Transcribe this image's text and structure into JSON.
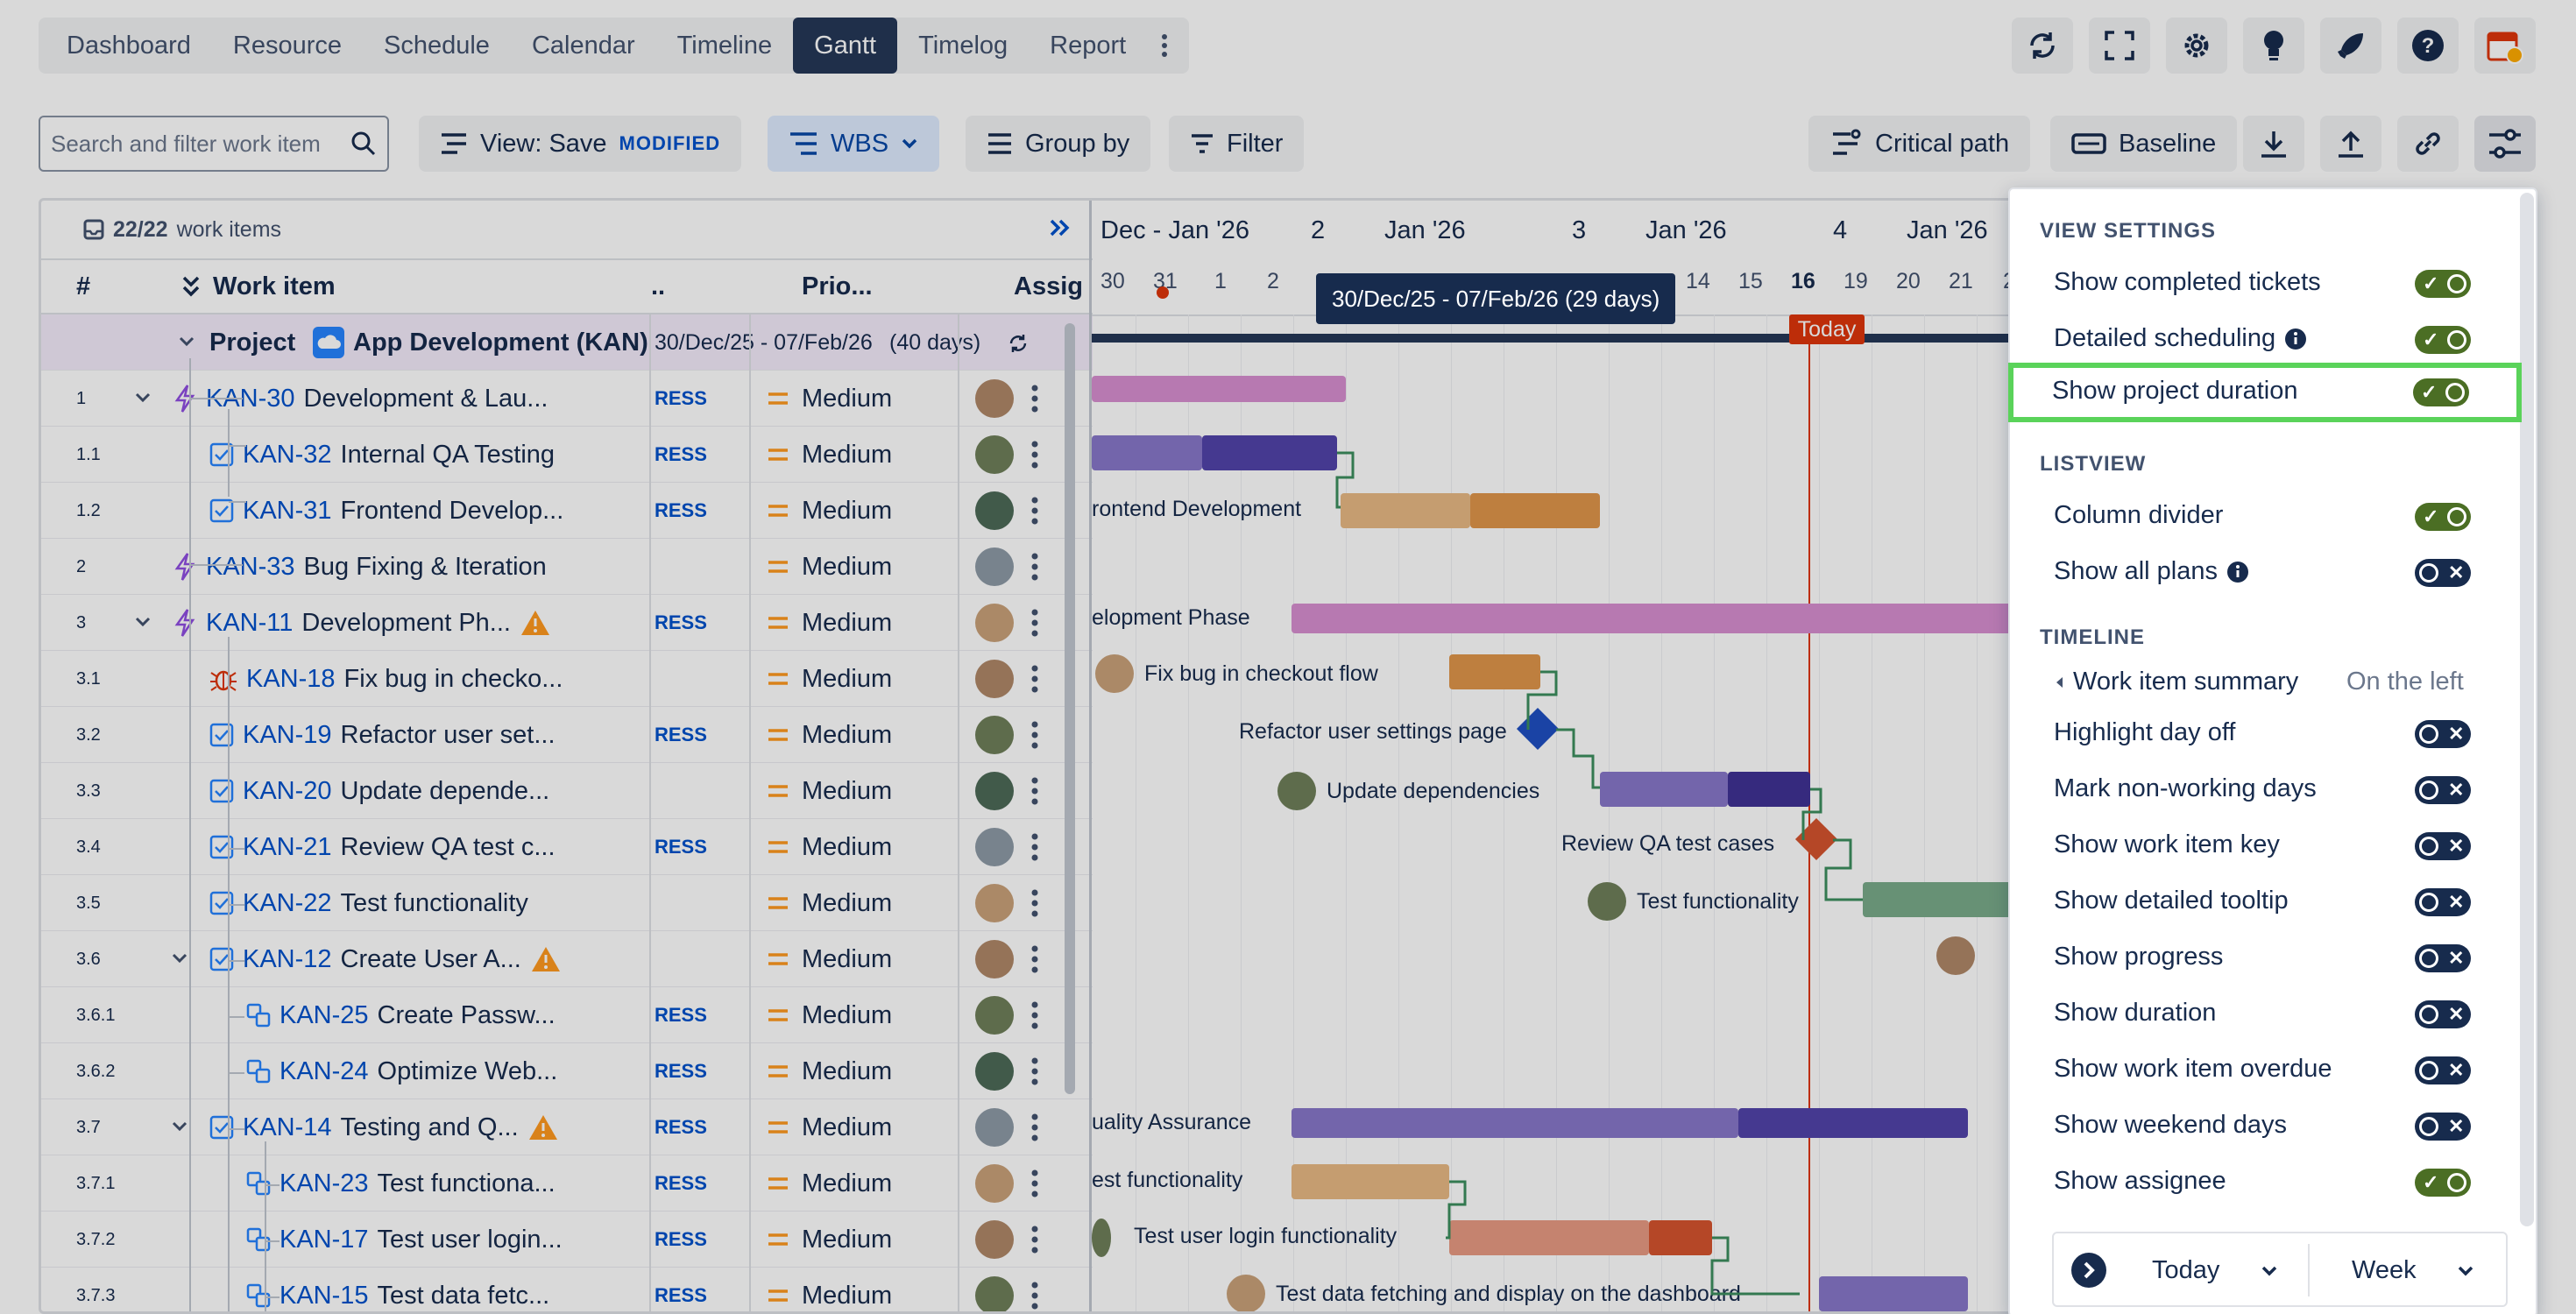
{
  "nav": {
    "tabs": [
      "Dashboard",
      "Resource",
      "Schedule",
      "Calendar",
      "Timeline",
      "Gantt",
      "Timelog",
      "Report"
    ],
    "active_tab": "Gantt"
  },
  "toolbar": {
    "search_placeholder": "Search and filter work item",
    "view_label": "View: Save",
    "view_badge": "MODIFIED",
    "wbs_label": "WBS",
    "group_label": "Group by",
    "filter_label": "Filter",
    "critical_label": "Critical path",
    "baseline_label": "Baseline"
  },
  "list": {
    "count": "22/22",
    "count_suffix": "work items",
    "columns": {
      "num": "#",
      "work_item": "Work item",
      "status": "..",
      "priority": "Prio...",
      "assignee": "Assig"
    },
    "project": {
      "label": "Project",
      "name": "App Development (KAN)",
      "dates": "30/Dec/25 - 07/Feb/26",
      "duration": "(40 days)"
    },
    "status_text": "RESS",
    "priority_text": "Medium",
    "rows": [
      {
        "num": "1",
        "key": "KAN-30",
        "title": "Development & Lau..."
      },
      {
        "num": "1.1",
        "key": "KAN-32",
        "title": "Internal QA Testing"
      },
      {
        "num": "1.2",
        "key": "KAN-31",
        "title": "Frontend Develop..."
      },
      {
        "num": "2",
        "key": "KAN-33",
        "title": "Bug Fixing & Iteration"
      },
      {
        "num": "3",
        "key": "KAN-11",
        "title": "Development Ph..."
      },
      {
        "num": "3.1",
        "key": "KAN-18",
        "title": "Fix bug in checko..."
      },
      {
        "num": "3.2",
        "key": "KAN-19",
        "title": "Refactor user set..."
      },
      {
        "num": "3.3",
        "key": "KAN-20",
        "title": "Update depende..."
      },
      {
        "num": "3.4",
        "key": "KAN-21",
        "title": "Review QA test c..."
      },
      {
        "num": "3.5",
        "key": "KAN-22",
        "title": "Test functionality"
      },
      {
        "num": "3.6",
        "key": "KAN-12",
        "title": "Create User A..."
      },
      {
        "num": "3.6.1",
        "key": "KAN-25",
        "title": "Create Passw..."
      },
      {
        "num": "3.6.2",
        "key": "KAN-24",
        "title": "Optimize Web..."
      },
      {
        "num": "3.7",
        "key": "KAN-14",
        "title": "Testing and Q..."
      },
      {
        "num": "3.7.1",
        "key": "KAN-23",
        "title": "Test functiona..."
      },
      {
        "num": "3.7.2",
        "key": "KAN-17",
        "title": "Test user login..."
      },
      {
        "num": "3.7.3",
        "key": "KAN-15",
        "title": "Test data fetc..."
      }
    ]
  },
  "timeline": {
    "months": [
      "Dec - Jan '26",
      "2",
      "Jan '26",
      "3",
      "Jan '26",
      "4",
      "Jan '26"
    ],
    "days": [
      "30",
      "31",
      "1",
      "2",
      "14",
      "15",
      "16",
      "19",
      "20",
      "21",
      "2"
    ],
    "today_label": "Today",
    "tooltip": "30/Dec/25 - 07/Feb/26 (29 days)",
    "labels": {
      "frontend": "rontend Development",
      "devphase": "elopment Phase",
      "fixbug": "Fix bug in checkout flow",
      "refactor": "Refactor user settings page",
      "update": "Update dependencies",
      "review": "Review QA test cases",
      "testfunc": "Test functionality",
      "qa": "uality Assurance",
      "testfunc2": "est functionality",
      "login": "Test user login functionality",
      "fetch": "Test data fetching and display on the dashboard"
    }
  },
  "settings": {
    "view_title": "VIEW SETTINGS",
    "listview_title": "LISTVIEW",
    "timeline_title": "TIMELINE",
    "view": [
      {
        "label": "Show completed tickets",
        "on": true
      },
      {
        "label": "Detailed scheduling",
        "on": true
      },
      {
        "label": "Show project duration",
        "on": true
      }
    ],
    "listview": [
      {
        "label": "Column divider",
        "on": true
      },
      {
        "label": "Show all plans",
        "on": false
      }
    ],
    "summary_label": "Work item summary",
    "summary_value": "On the left",
    "timeline": [
      {
        "label": "Highlight day off",
        "on": false
      },
      {
        "label": "Mark non-working days",
        "on": false
      },
      {
        "label": "Show work item key",
        "on": false
      },
      {
        "label": "Show detailed tooltip",
        "on": false
      },
      {
        "label": "Show progress",
        "on": false
      },
      {
        "label": "Show duration",
        "on": false
      },
      {
        "label": "Show work item overdue",
        "on": false
      },
      {
        "label": "Show weekend days",
        "on": false
      },
      {
        "label": "Show assignee",
        "on": true
      }
    ]
  },
  "footer": {
    "today": "Today",
    "scale": "Week"
  }
}
